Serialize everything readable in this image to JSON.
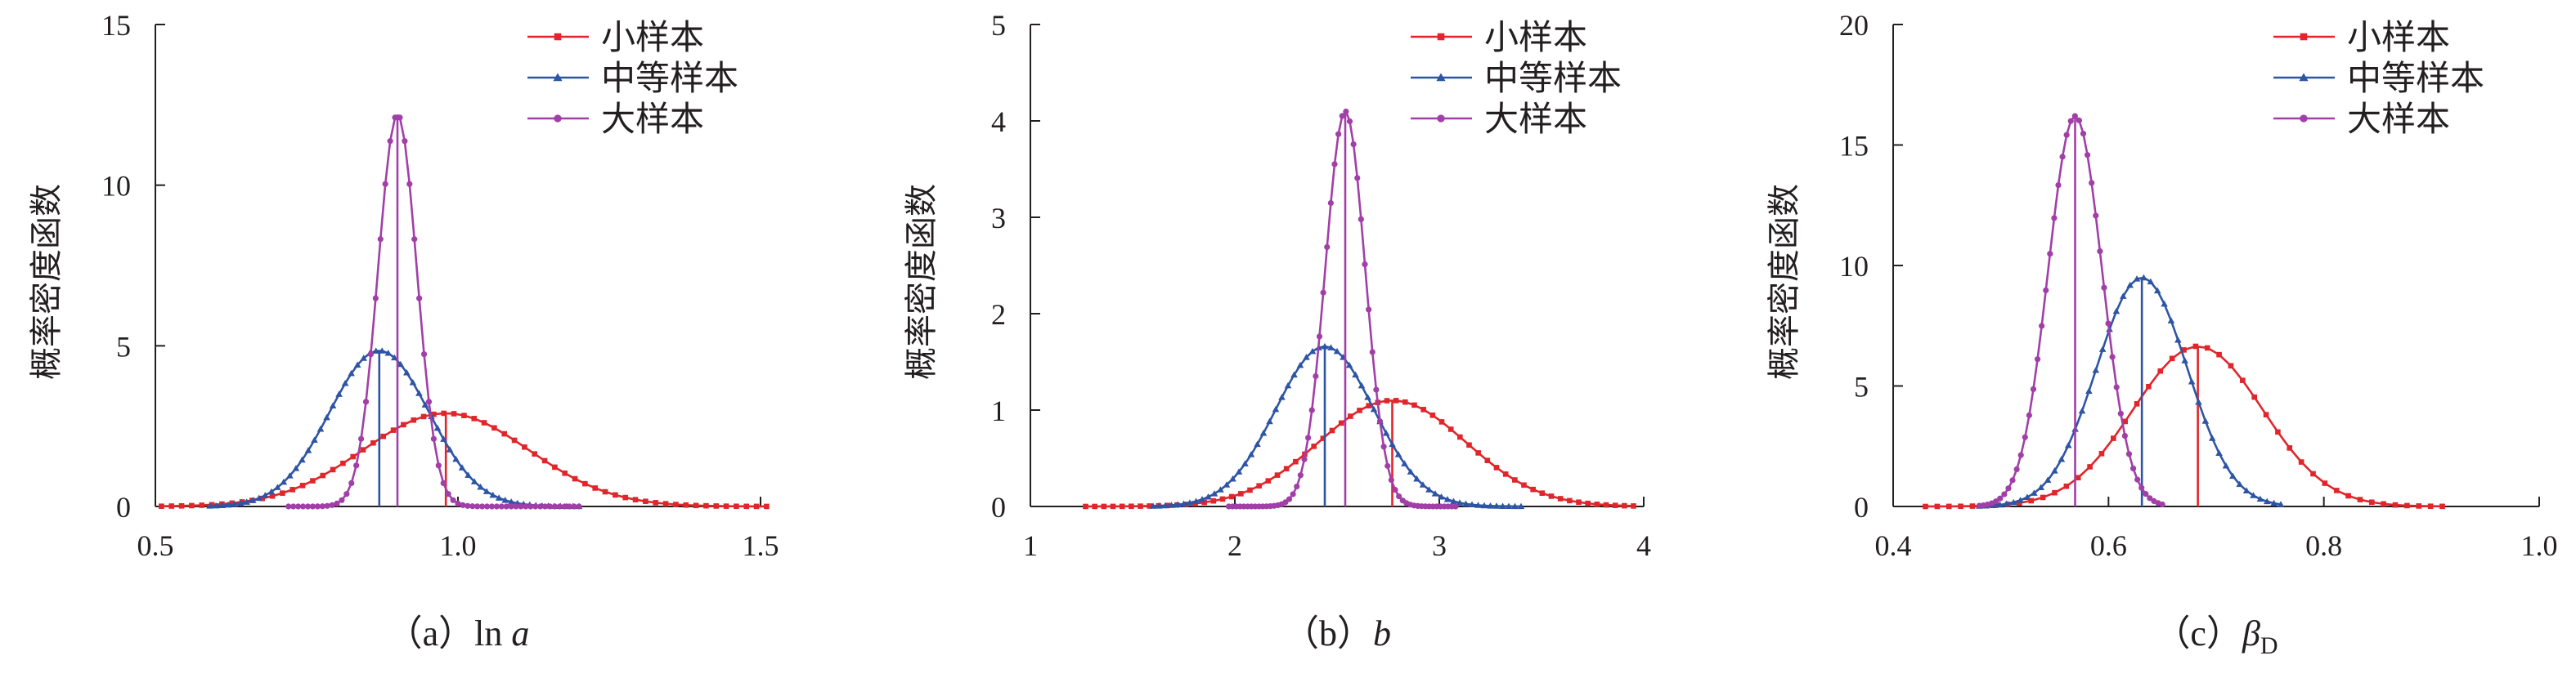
{
  "chart_data": [
    {
      "type": "line",
      "caption": "（a）ln a",
      "caption_prefix": "（a）",
      "caption_var": "ln ",
      "caption_var_italic": "a",
      "caption_sub": "",
      "ylabel": "概率密度函数",
      "xlim": [
        0.5,
        1.5
      ],
      "ylim": [
        0,
        15
      ],
      "xticks": [
        "0.5",
        "1.0",
        "1.5"
      ],
      "yticks": [
        "0",
        "5",
        "10",
        "15"
      ],
      "legend": "top-right",
      "series": [
        {
          "name": "小样本",
          "color": "#e0262b",
          "marker": "square",
          "mean": 0.98,
          "sigma": 0.137,
          "peak": 2.9,
          "range": [
            0.51,
            1.51
          ],
          "n": 61
        },
        {
          "name": "中等样本",
          "color": "#2e55a5",
          "marker": "triangle",
          "mean": 0.87,
          "sigma": 0.082,
          "peak": 4.85,
          "range": [
            0.59,
            1.2
          ],
          "n": 61
        },
        {
          "name": "大样本",
          "color": "#a23ea8",
          "marker": "circle",
          "mean": 0.9,
          "sigma": 0.032,
          "peak": 12.2,
          "range": [
            0.72,
            1.2
          ],
          "n": 61
        }
      ]
    },
    {
      "type": "line",
      "caption": "（b）b",
      "caption_prefix": "（b）",
      "caption_var": "",
      "caption_var_italic": "b",
      "caption_sub": "",
      "ylabel": "概率密度函数",
      "xlim": [
        1,
        4
      ],
      "ylim": [
        0,
        5
      ],
      "xticks": [
        "1",
        "2",
        "3",
        "4"
      ],
      "yticks": [
        "0",
        "1",
        "2",
        "3",
        "4",
        "5"
      ],
      "legend": "top-right",
      "series": [
        {
          "name": "小样本",
          "color": "#e0262b",
          "marker": "square",
          "mean": 2.77,
          "sigma": 0.36,
          "peak": 1.1,
          "range": [
            1.27,
            3.95
          ],
          "n": 61
        },
        {
          "name": "中等样本",
          "color": "#2e55a5",
          "marker": "triangle",
          "mean": 2.44,
          "sigma": 0.24,
          "peak": 1.66,
          "range": [
            1.6,
            3.4
          ],
          "n": 61
        },
        {
          "name": "大样本",
          "color": "#a23ea8",
          "marker": "circle",
          "mean": 2.54,
          "sigma": 0.097,
          "peak": 4.1,
          "range": [
            1.97,
            3.08
          ],
          "n": 61
        }
      ]
    },
    {
      "type": "line",
      "caption": "（c）βD",
      "caption_prefix": "（c）",
      "caption_var": "",
      "caption_var_italic": "β",
      "caption_sub": "D",
      "ylabel": "概率密度函数",
      "xlim": [
        0.4,
        1.0
      ],
      "ylim": [
        0,
        20
      ],
      "xticks": [
        "0.4",
        "0.6",
        "0.8",
        "1.0"
      ],
      "yticks": [
        "0",
        "5",
        "10",
        "15",
        "20"
      ],
      "legend": "top-right",
      "series": [
        {
          "name": "小样本",
          "color": "#e0262b",
          "marker": "square",
          "mean": 0.683,
          "sigma": 0.06,
          "peak": 6.65,
          "range": [
            0.43,
            0.91
          ],
          "n": 45
        },
        {
          "name": "中等样本",
          "color": "#2e55a5",
          "marker": "triangle",
          "mean": 0.631,
          "sigma": 0.042,
          "peak": 9.5,
          "range": [
            0.48,
            0.76
          ],
          "n": 45
        },
        {
          "name": "大样本",
          "color": "#a23ea8",
          "marker": "circle",
          "mean": 0.569,
          "sigma": 0.025,
          "peak": 16.2,
          "range": [
            0.48,
            0.65
          ],
          "n": 45
        }
      ]
    }
  ]
}
